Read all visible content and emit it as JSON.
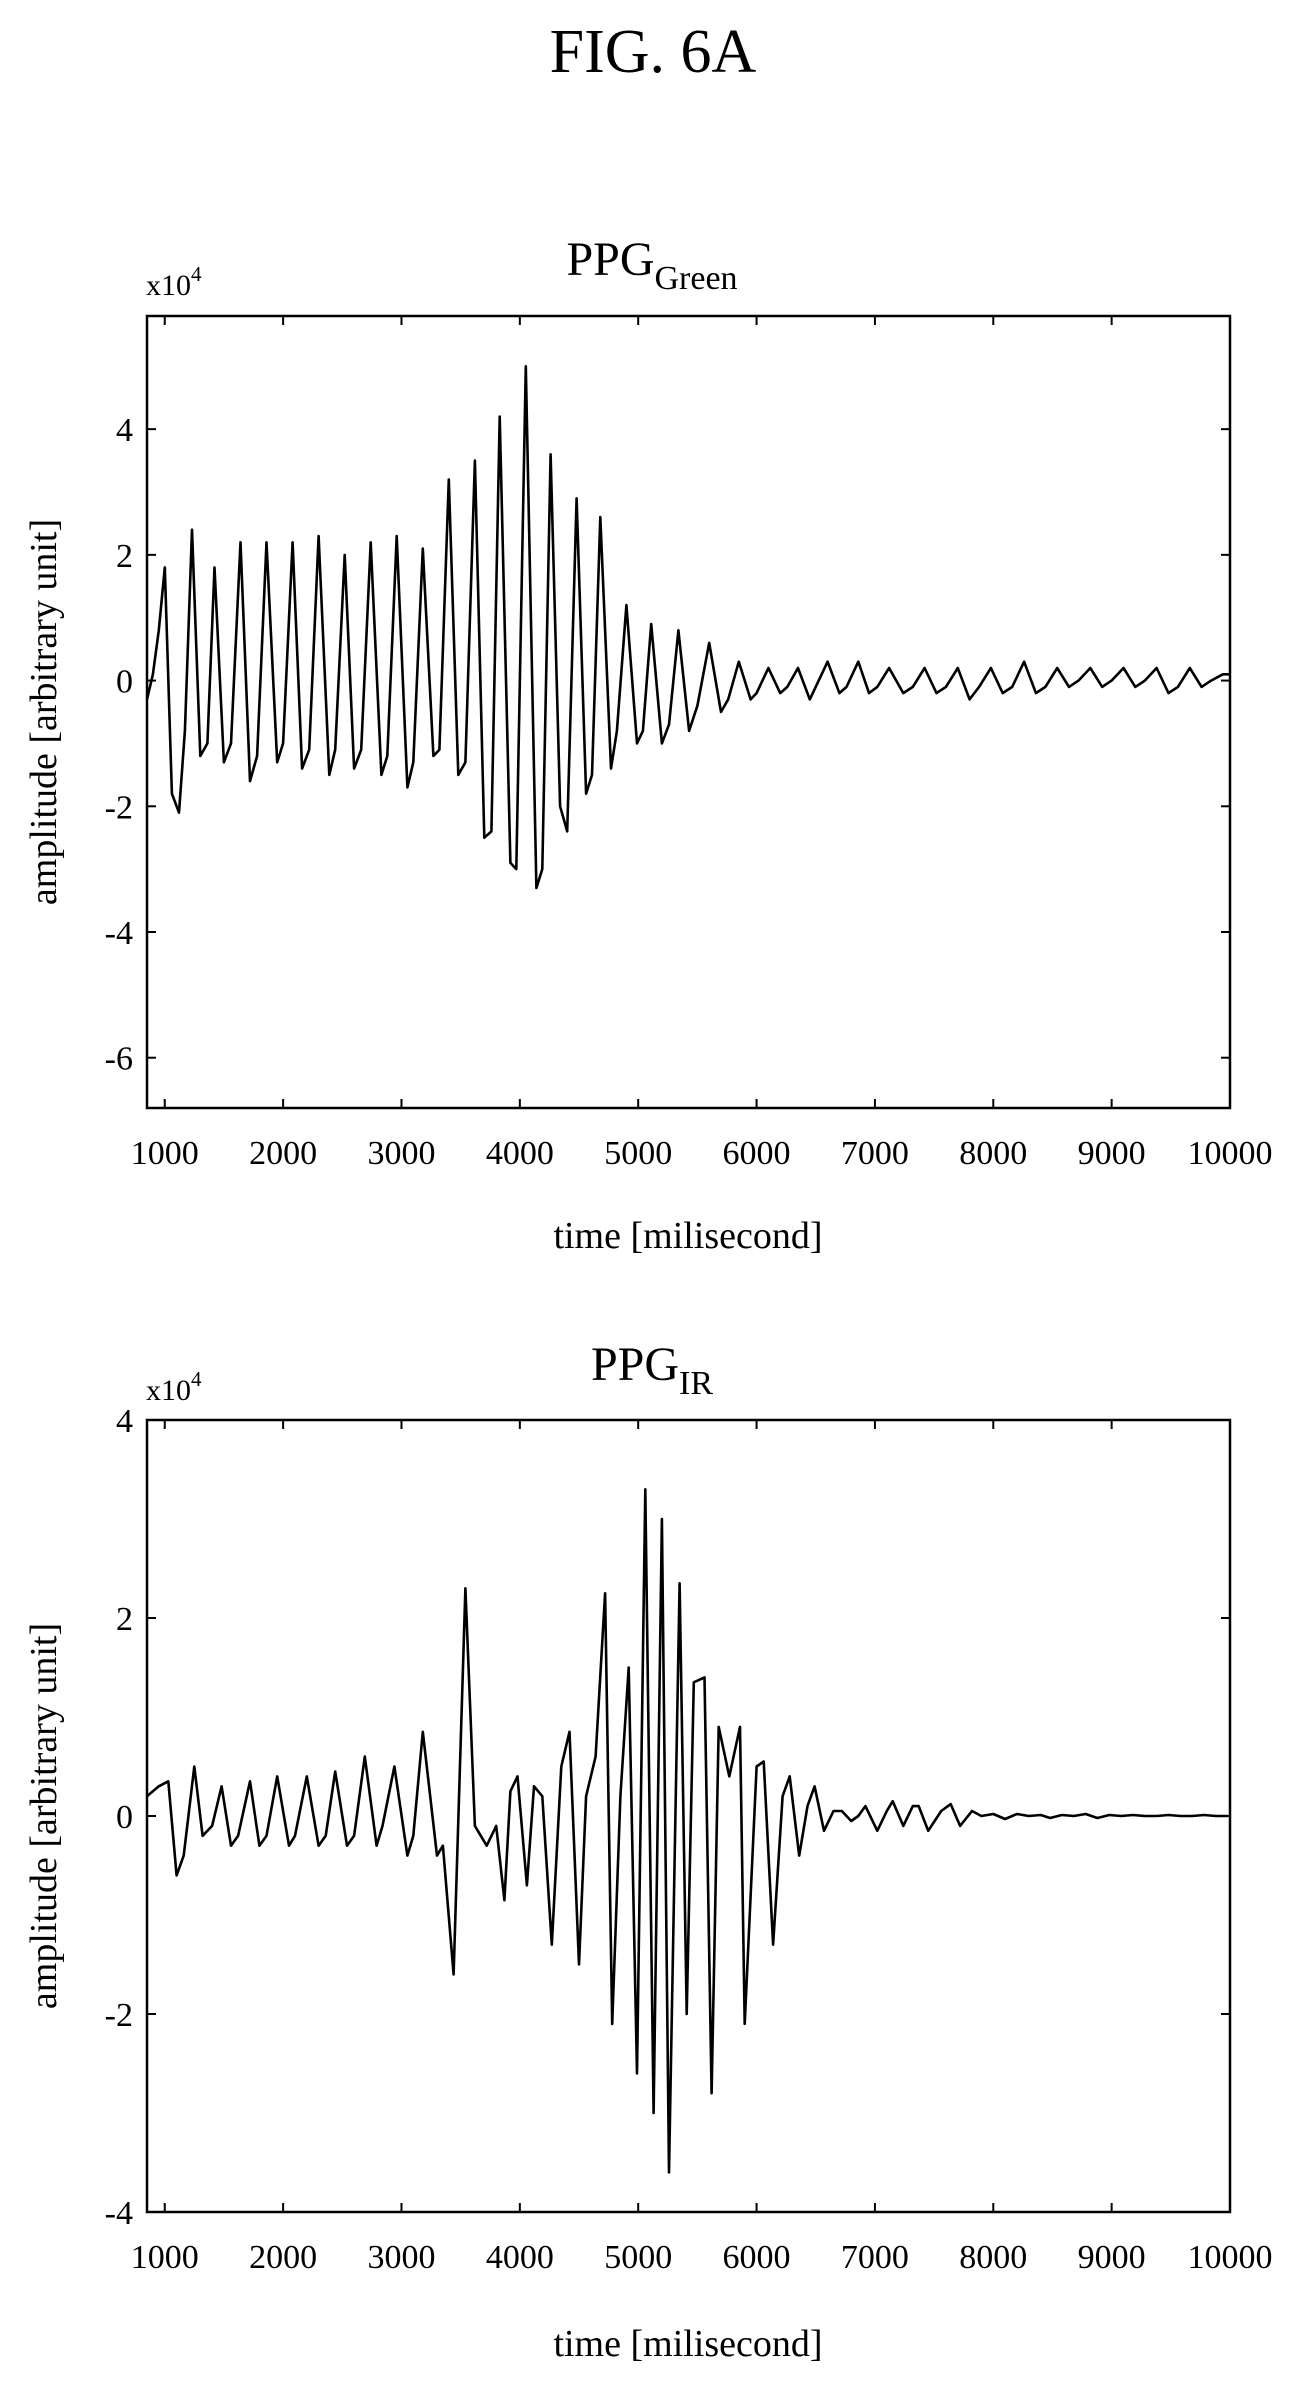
{
  "figure_label": "FIG. 6A",
  "chart_data": [
    {
      "type": "line",
      "title": "PPG",
      "title_subscript": "Green",
      "exponent_label": "x10",
      "exponent_power": "4",
      "xlabel": "time [milisecond]",
      "ylabel": "amplitude [arbitrary unit]",
      "xlim": [
        850,
        10000
      ],
      "ylim": [
        -6.8,
        5.8
      ],
      "xticks": [
        1000,
        2000,
        3000,
        4000,
        5000,
        6000,
        7000,
        8000,
        9000,
        10000
      ],
      "yticks": [
        -6,
        -4,
        -2,
        0,
        2,
        4
      ],
      "grid": false,
      "series": [
        {
          "x": [
            850,
            900,
            950,
            1000,
            1060,
            1120,
            1170,
            1230,
            1300,
            1360,
            1420,
            1500,
            1560,
            1640,
            1720,
            1780,
            1860,
            1950,
            2000,
            2080,
            2160,
            2220,
            2300,
            2390,
            2440,
            2520,
            2600,
            2660,
            2740,
            2830,
            2880,
            2960,
            3050,
            3100,
            3180,
            3270,
            3320,
            3400,
            3480,
            3540,
            3620,
            3700,
            3760,
            3830,
            3920,
            3970,
            4050,
            4140,
            4190,
            4260,
            4340,
            4400,
            4480,
            4560,
            4610,
            4680,
            4770,
            4820,
            4900,
            4990,
            5040,
            5110,
            5200,
            5260,
            5340,
            5430,
            5500,
            5600,
            5700,
            5760,
            5850,
            5950,
            6000,
            6100,
            6200,
            6260,
            6350,
            6450,
            6500,
            6600,
            6700,
            6760,
            6860,
            6950,
            7020,
            7120,
            7240,
            7320,
            7420,
            7520,
            7600,
            7700,
            7800,
            7880,
            7980,
            8080,
            8160,
            8260,
            8360,
            8440,
            8540,
            8640,
            8720,
            8820,
            8920,
            9000,
            9100,
            9200,
            9280,
            9380,
            9480,
            9560,
            9660,
            9760,
            9840,
            9940,
            10000
          ],
          "y": [
            -0.3,
            0.1,
            0.8,
            1.8,
            -1.8,
            -2.1,
            -0.8,
            2.4,
            -1.2,
            -1.0,
            1.8,
            -1.3,
            -1.0,
            2.2,
            -1.6,
            -1.2,
            2.2,
            -1.3,
            -1.0,
            2.2,
            -1.4,
            -1.1,
            2.3,
            -1.5,
            -1.1,
            2.0,
            -1.4,
            -1.1,
            2.2,
            -1.5,
            -1.2,
            2.3,
            -1.7,
            -1.3,
            2.1,
            -1.2,
            -1.1,
            3.2,
            -1.5,
            -1.3,
            3.5,
            -2.5,
            -2.4,
            4.2,
            -2.9,
            -3.0,
            5.0,
            -3.3,
            -3.0,
            3.6,
            -2.0,
            -2.4,
            2.9,
            -1.8,
            -1.5,
            2.6,
            -1.4,
            -0.8,
            1.2,
            -1.0,
            -0.8,
            0.9,
            -1.0,
            -0.7,
            0.8,
            -0.8,
            -0.4,
            0.6,
            -0.5,
            -0.3,
            0.3,
            -0.3,
            -0.2,
            0.2,
            -0.2,
            -0.1,
            0.2,
            -0.3,
            -0.1,
            0.3,
            -0.2,
            -0.1,
            0.3,
            -0.2,
            -0.1,
            0.2,
            -0.2,
            -0.1,
            0.2,
            -0.2,
            -0.1,
            0.2,
            -0.3,
            -0.1,
            0.2,
            -0.2,
            -0.1,
            0.3,
            -0.2,
            -0.1,
            0.2,
            -0.1,
            0.0,
            0.2,
            -0.1,
            0.0,
            0.2,
            -0.1,
            0.0,
            0.2,
            -0.2,
            -0.1,
            0.2,
            -0.1,
            0.0,
            0.1,
            0.1
          ]
        }
      ]
    },
    {
      "type": "line",
      "title": "PPG",
      "title_subscript": "IR",
      "exponent_label": "x10",
      "exponent_power": "4",
      "xlabel": "time [milisecond]",
      "ylabel": "amplitude [arbitrary unit]",
      "xlim": [
        850,
        10000
      ],
      "ylim": [
        -4,
        4
      ],
      "xticks": [
        1000,
        2000,
        3000,
        4000,
        5000,
        6000,
        7000,
        8000,
        9000,
        10000
      ],
      "yticks": [
        -4,
        -2,
        0,
        2,
        4
      ],
      "grid": false,
      "series": [
        {
          "x": [
            850,
            950,
            1030,
            1100,
            1160,
            1250,
            1320,
            1400,
            1480,
            1560,
            1620,
            1720,
            1800,
            1860,
            1950,
            2050,
            2100,
            2200,
            2300,
            2360,
            2440,
            2540,
            2600,
            2690,
            2790,
            2840,
            2940,
            3050,
            3100,
            3180,
            3300,
            3350,
            3440,
            3540,
            3620,
            3720,
            3800,
            3870,
            3920,
            3980,
            4060,
            4120,
            4190,
            4270,
            4350,
            4420,
            4500,
            4560,
            4640,
            4720,
            4780,
            4850,
            4920,
            4990,
            5060,
            5130,
            5200,
            5260,
            5350,
            5410,
            5470,
            5560,
            5620,
            5680,
            5770,
            5860,
            5900,
            6000,
            6060,
            6140,
            6220,
            6280,
            6360,
            6430,
            6490,
            6570,
            6650,
            6720,
            6800,
            6860,
            6920,
            7020,
            7100,
            7150,
            7240,
            7320,
            7370,
            7450,
            7560,
            7640,
            7720,
            7820,
            7900,
            8000,
            8100,
            8200,
            8300,
            8400,
            8480,
            8580,
            8680,
            8780,
            8880,
            8980,
            9080,
            9180,
            9280,
            9380,
            9480,
            9580,
            9680,
            9780,
            9880,
            9980
          ],
          "y": [
            0.2,
            0.3,
            0.35,
            -0.6,
            -0.4,
            0.5,
            -0.2,
            -0.1,
            0.3,
            -0.3,
            -0.2,
            0.35,
            -0.3,
            -0.2,
            0.4,
            -0.3,
            -0.2,
            0.4,
            -0.3,
            -0.2,
            0.45,
            -0.3,
            -0.2,
            0.6,
            -0.3,
            -0.1,
            0.5,
            -0.4,
            -0.2,
            0.85,
            -0.4,
            -0.3,
            -1.6,
            2.3,
            -0.1,
            -0.3,
            -0.1,
            -0.85,
            0.25,
            0.4,
            -0.7,
            0.3,
            0.2,
            -1.3,
            0.5,
            0.85,
            -1.5,
            0.2,
            0.6,
            2.25,
            -2.1,
            0.2,
            1.5,
            -2.6,
            3.3,
            -3.0,
            3.0,
            -3.6,
            2.35,
            -2.0,
            1.35,
            1.4,
            -2.8,
            0.9,
            0.4,
            0.9,
            -2.1,
            0.5,
            0.55,
            -1.3,
            0.2,
            0.4,
            -0.4,
            0.1,
            0.3,
            -0.15,
            0.05,
            0.05,
            -0.05,
            0.0,
            0.1,
            -0.15,
            0.05,
            0.15,
            -0.1,
            0.1,
            0.1,
            -0.15,
            0.05,
            0.12,
            -0.1,
            0.05,
            0.0,
            0.02,
            -0.03,
            0.02,
            0.0,
            0.01,
            -0.02,
            0.01,
            0.0,
            0.02,
            -0.02,
            0.01,
            0.0,
            0.01,
            0.0,
            0.0,
            0.01,
            0.0,
            0.0,
            0.01,
            0.0,
            0.0
          ]
        }
      ]
    }
  ]
}
